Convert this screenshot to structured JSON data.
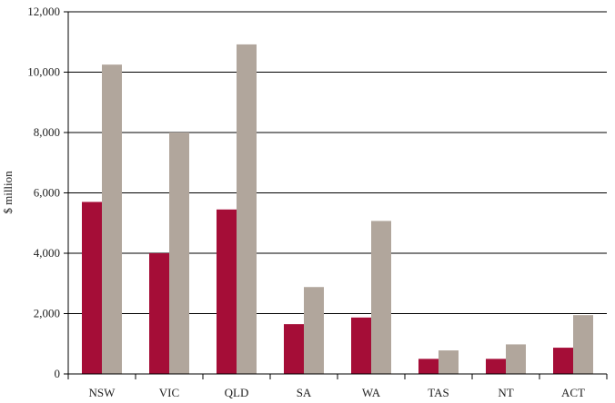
{
  "chart_data": {
    "type": "bar",
    "title": "",
    "xlabel": "",
    "ylabel": "$ million",
    "ylim": [
      0,
      12000
    ],
    "yticks": [
      "0",
      "2,000",
      "4,000",
      "6,000",
      "8,000",
      "10,000",
      "12,000"
    ],
    "ytick_values": [
      0,
      2000,
      4000,
      6000,
      8000,
      10000,
      12000
    ],
    "grid": true,
    "categories": [
      "NSW",
      "VIC",
      "QLD",
      "SA",
      "WA",
      "TAS",
      "NT",
      "ACT"
    ],
    "series": [
      {
        "color": "#a50d37",
        "values": [
          5700,
          4000,
          5450,
          1650,
          1870,
          500,
          500,
          870
        ]
      },
      {
        "color": "#b1a69c",
        "values": [
          10250,
          8000,
          10920,
          2880,
          5070,
          780,
          980,
          1950
        ]
      }
    ]
  }
}
